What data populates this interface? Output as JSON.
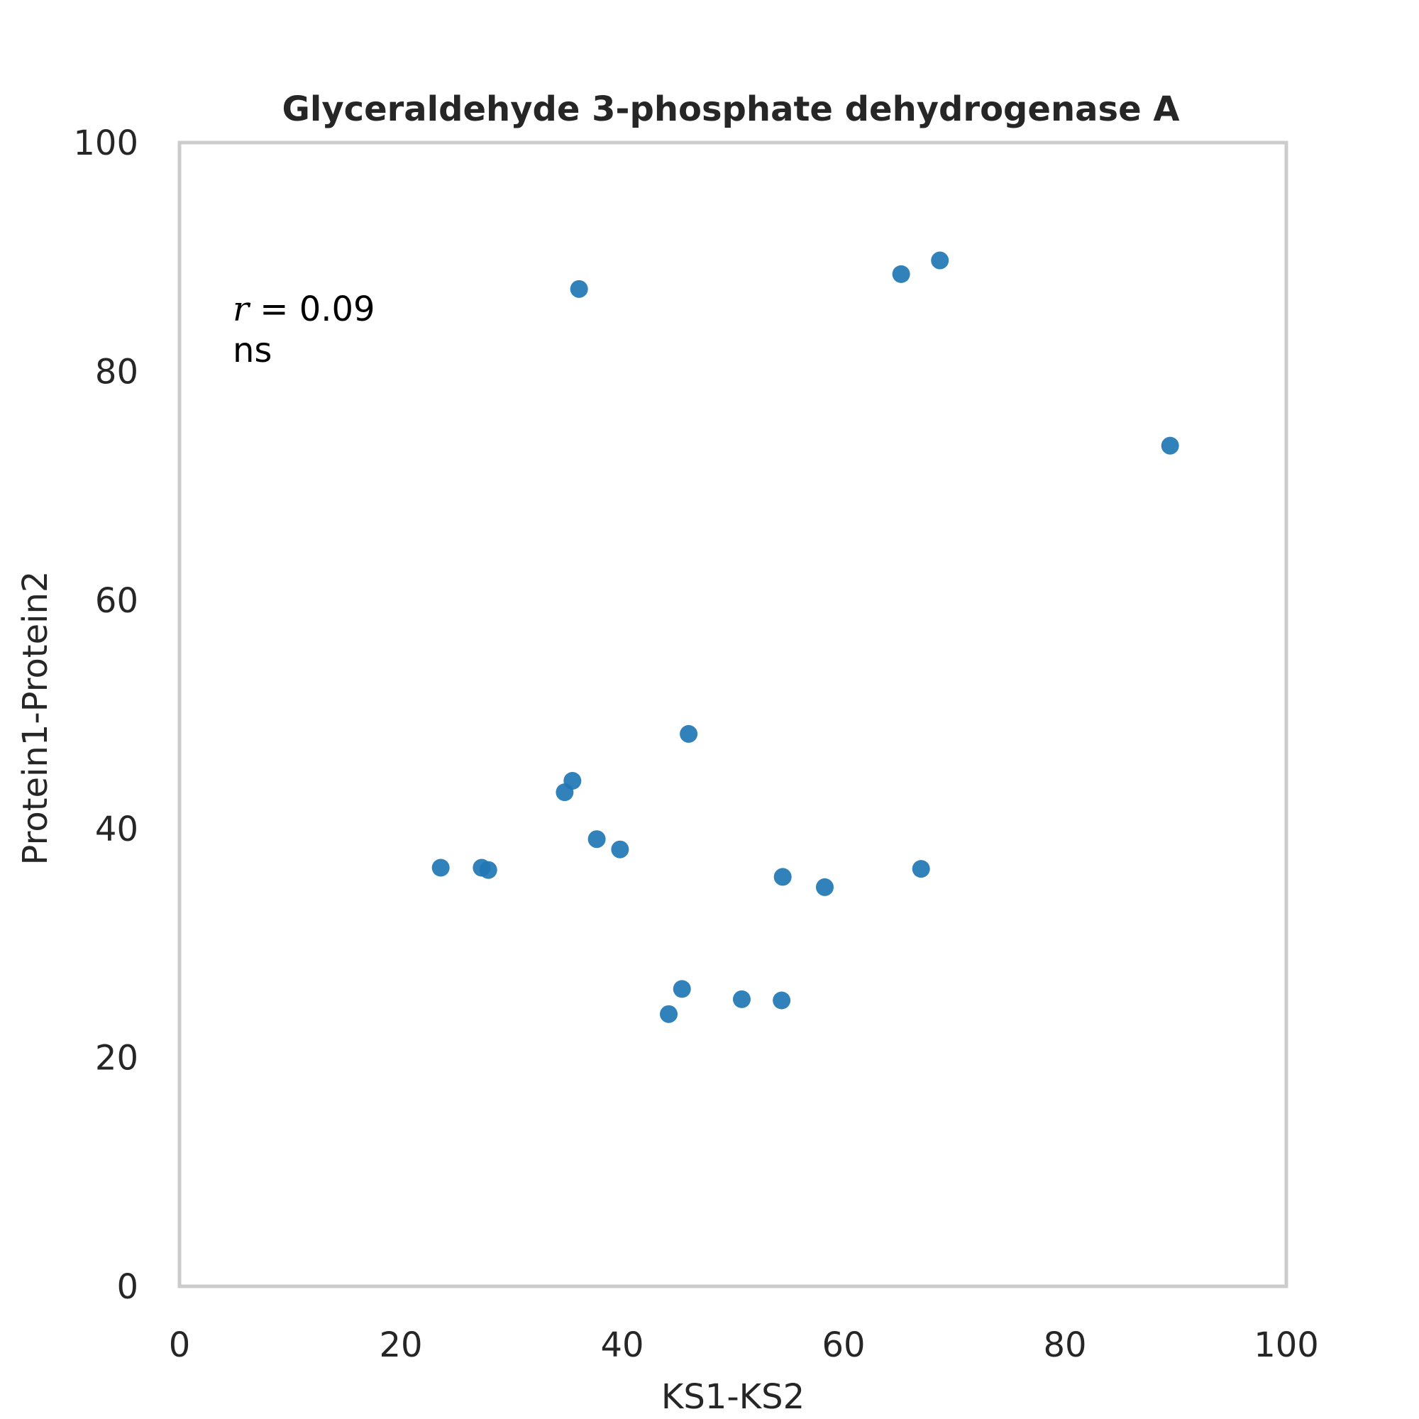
{
  "chart_data": {
    "type": "scatter",
    "title": "Glyceraldehyde 3-phosphate dehydrogenase A",
    "xlabel": "KS1-KS2",
    "ylabel": "Protein1-Protein2",
    "xlim": [
      0,
      100
    ],
    "ylim": [
      0,
      100
    ],
    "xticks": [
      "0",
      "20",
      "40",
      "60",
      "80",
      "100"
    ],
    "yticks": [
      "0",
      "20",
      "40",
      "60",
      "80",
      "100"
    ],
    "grid": false,
    "annotation": {
      "r_symbol": "r",
      "r_equals": "= 0.09",
      "significance": "ns"
    },
    "series": [
      {
        "color": "#1f77b4",
        "x": [
          36.1,
          65.2,
          68.7,
          89.5,
          46.0,
          35.5,
          34.8,
          37.7,
          39.8,
          23.6,
          27.3,
          27.9,
          54.5,
          58.3,
          67.0,
          45.4,
          44.2,
          50.8,
          54.4
        ],
        "y": [
          87.2,
          88.5,
          89.7,
          73.5,
          48.3,
          44.2,
          43.2,
          39.1,
          38.2,
          36.6,
          36.6,
          36.4,
          35.8,
          34.9,
          36.5,
          26.0,
          23.8,
          25.1,
          25.0
        ]
      }
    ]
  }
}
